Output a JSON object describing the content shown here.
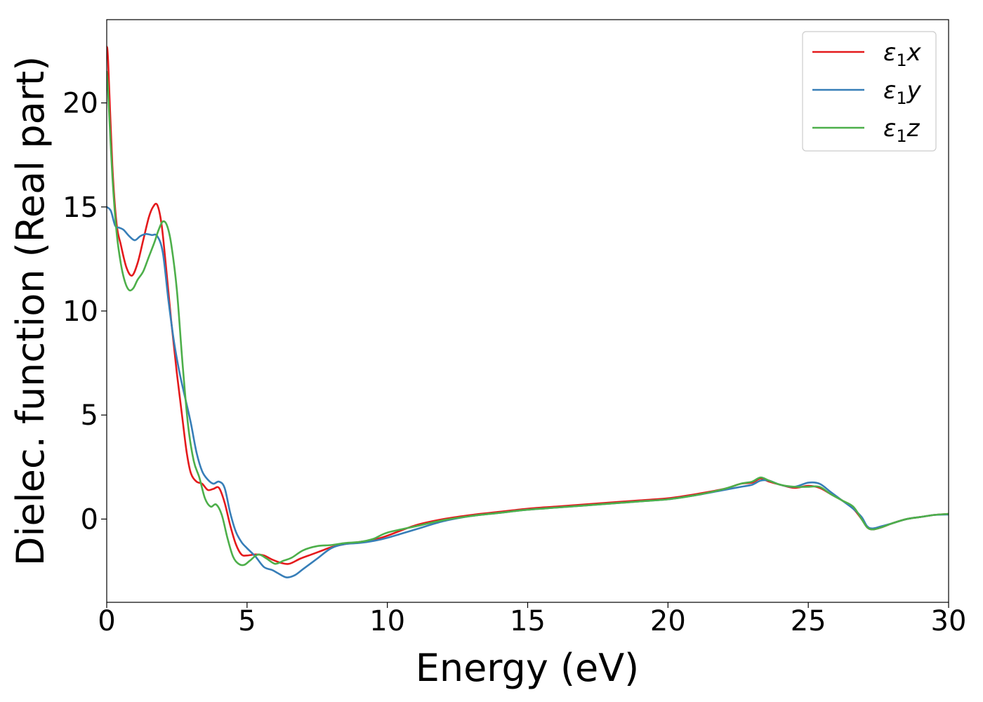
{
  "chart_data": {
    "type": "line",
    "title": "",
    "xlabel": "Energy (eV)",
    "ylabel": "Dielec. function (Real part)",
    "xlim": [
      0,
      30
    ],
    "ylim": [
      -4.0,
      24.0
    ],
    "xticks": [
      0,
      5,
      10,
      15,
      20,
      25,
      30
    ],
    "yticks": [
      0,
      5,
      10,
      15,
      20
    ],
    "grid": false,
    "legend_position": "top-right",
    "series": [
      {
        "name": "ε1x",
        "legend_main": "ε",
        "legend_sub": "1",
        "legend_var": "x",
        "color": "#e41a1c",
        "x": [
          0,
          0.05,
          0.2,
          0.35,
          0.5,
          0.7,
          0.9,
          1.1,
          1.3,
          1.5,
          1.65,
          1.8,
          1.95,
          2.1,
          2.3,
          2.5,
          2.7,
          2.85,
          3.0,
          3.2,
          3.4,
          3.6,
          3.8,
          4.0,
          4.2,
          4.4,
          4.6,
          4.8,
          5.0,
          5.3,
          5.6,
          5.9,
          6.2,
          6.5,
          6.9,
          7.3,
          7.7,
          8.0,
          8.5,
          9.0,
          9.5,
          10.0,
          11,
          12,
          13,
          14,
          15,
          16,
          17,
          18,
          19,
          20,
          21,
          22,
          22.6,
          23.0,
          23.3,
          23.6,
          24.0,
          24.5,
          25.0,
          25.4,
          25.8,
          26.2,
          26.6,
          26.9,
          27.1,
          27.3,
          27.6,
          28,
          28.5,
          29,
          29.5,
          30
        ],
        "y": [
          22.7,
          22.0,
          17.0,
          14.2,
          13.2,
          12.1,
          11.7,
          12.3,
          13.4,
          14.5,
          15.0,
          15.1,
          14.2,
          12.3,
          9.5,
          7.0,
          4.8,
          3.2,
          2.2,
          1.8,
          1.7,
          1.4,
          1.45,
          1.5,
          0.8,
          -0.3,
          -1.2,
          -1.7,
          -1.75,
          -1.7,
          -1.75,
          -1.95,
          -2.1,
          -2.15,
          -1.9,
          -1.7,
          -1.5,
          -1.35,
          -1.2,
          -1.1,
          -1.0,
          -0.8,
          -0.3,
          0.0,
          0.2,
          0.35,
          0.5,
          0.6,
          0.7,
          0.8,
          0.9,
          1.0,
          1.2,
          1.45,
          1.7,
          1.75,
          1.95,
          1.8,
          1.65,
          1.5,
          1.6,
          1.5,
          1.2,
          0.9,
          0.5,
          0.0,
          -0.4,
          -0.5,
          -0.4,
          -0.2,
          0.0,
          0.1,
          0.2,
          0.25
        ]
      },
      {
        "name": "ε1y",
        "legend_main": "ε",
        "legend_sub": "1",
        "legend_var": "y",
        "color": "#377eb8",
        "x": [
          0,
          0.15,
          0.3,
          0.45,
          0.6,
          0.8,
          1.0,
          1.2,
          1.4,
          1.6,
          1.8,
          2.0,
          2.2,
          2.4,
          2.6,
          2.8,
          3.0,
          3.2,
          3.4,
          3.6,
          3.8,
          4.0,
          4.2,
          4.4,
          4.6,
          4.8,
          5.0,
          5.3,
          5.6,
          5.9,
          6.1,
          6.4,
          6.7,
          7.0,
          7.5,
          8.0,
          8.5,
          9.0,
          9.5,
          10.0,
          11,
          12,
          13,
          14,
          15,
          16,
          17,
          18,
          19,
          20,
          21,
          22,
          22.6,
          23.0,
          23.3,
          23.6,
          24.0,
          24.5,
          25.0,
          25.4,
          25.8,
          26.2,
          26.6,
          26.9,
          27.1,
          27.3,
          27.6,
          28,
          28.5,
          29,
          29.5,
          30
        ],
        "y": [
          15.0,
          14.8,
          14.1,
          14.0,
          13.9,
          13.6,
          13.4,
          13.6,
          13.7,
          13.65,
          13.6,
          12.8,
          10.5,
          8.5,
          7.0,
          5.8,
          4.6,
          3.2,
          2.3,
          1.9,
          1.7,
          1.8,
          1.5,
          0.3,
          -0.6,
          -1.1,
          -1.4,
          -1.8,
          -2.3,
          -2.45,
          -2.6,
          -2.8,
          -2.7,
          -2.4,
          -1.9,
          -1.4,
          -1.2,
          -1.15,
          -1.05,
          -0.9,
          -0.5,
          -0.1,
          0.15,
          0.3,
          0.45,
          0.55,
          0.65,
          0.75,
          0.85,
          0.95,
          1.15,
          1.4,
          1.55,
          1.65,
          1.85,
          1.85,
          1.65,
          1.55,
          1.75,
          1.7,
          1.3,
          0.9,
          0.5,
          0.1,
          -0.35,
          -0.45,
          -0.35,
          -0.2,
          0.0,
          0.1,
          0.2,
          0.22
        ]
      },
      {
        "name": "ε1z",
        "legend_main": "ε",
        "legend_sub": "1",
        "legend_var": "z",
        "color": "#4daf4a",
        "x": [
          0,
          0.05,
          0.2,
          0.35,
          0.5,
          0.65,
          0.8,
          0.95,
          1.1,
          1.3,
          1.5,
          1.7,
          1.85,
          2.0,
          2.15,
          2.3,
          2.5,
          2.7,
          2.9,
          3.1,
          3.3,
          3.5,
          3.7,
          3.9,
          4.1,
          4.3,
          4.5,
          4.7,
          4.9,
          5.1,
          5.4,
          5.7,
          6.0,
          6.3,
          6.6,
          7.0,
          7.5,
          8.0,
          8.5,
          9.0,
          9.5,
          10.0,
          11,
          12,
          13,
          14,
          15,
          16,
          17,
          18,
          19,
          20,
          21,
          22,
          22.6,
          23.0,
          23.3,
          23.6,
          24.0,
          24.5,
          25.0,
          25.4,
          25.8,
          26.2,
          26.6,
          26.9,
          27.1,
          27.3,
          27.6,
          28,
          28.5,
          29,
          29.5,
          30
        ],
        "y": [
          21.5,
          20.5,
          16.5,
          13.8,
          12.3,
          11.4,
          11.0,
          11.1,
          11.5,
          11.9,
          12.6,
          13.3,
          13.9,
          14.3,
          14.1,
          13.2,
          11.0,
          7.5,
          4.5,
          2.8,
          2.0,
          1.0,
          0.6,
          0.7,
          0.2,
          -0.9,
          -1.8,
          -2.15,
          -2.2,
          -2.0,
          -1.7,
          -1.9,
          -2.15,
          -2.0,
          -1.85,
          -1.5,
          -1.3,
          -1.25,
          -1.15,
          -1.1,
          -0.95,
          -0.65,
          -0.35,
          -0.05,
          0.15,
          0.3,
          0.45,
          0.55,
          0.65,
          0.75,
          0.85,
          0.95,
          1.15,
          1.45,
          1.7,
          1.8,
          2.0,
          1.85,
          1.65,
          1.55,
          1.55,
          1.55,
          1.2,
          0.9,
          0.6,
          0.0,
          -0.4,
          -0.5,
          -0.4,
          -0.2,
          0.0,
          0.1,
          0.2,
          0.25
        ]
      }
    ]
  }
}
